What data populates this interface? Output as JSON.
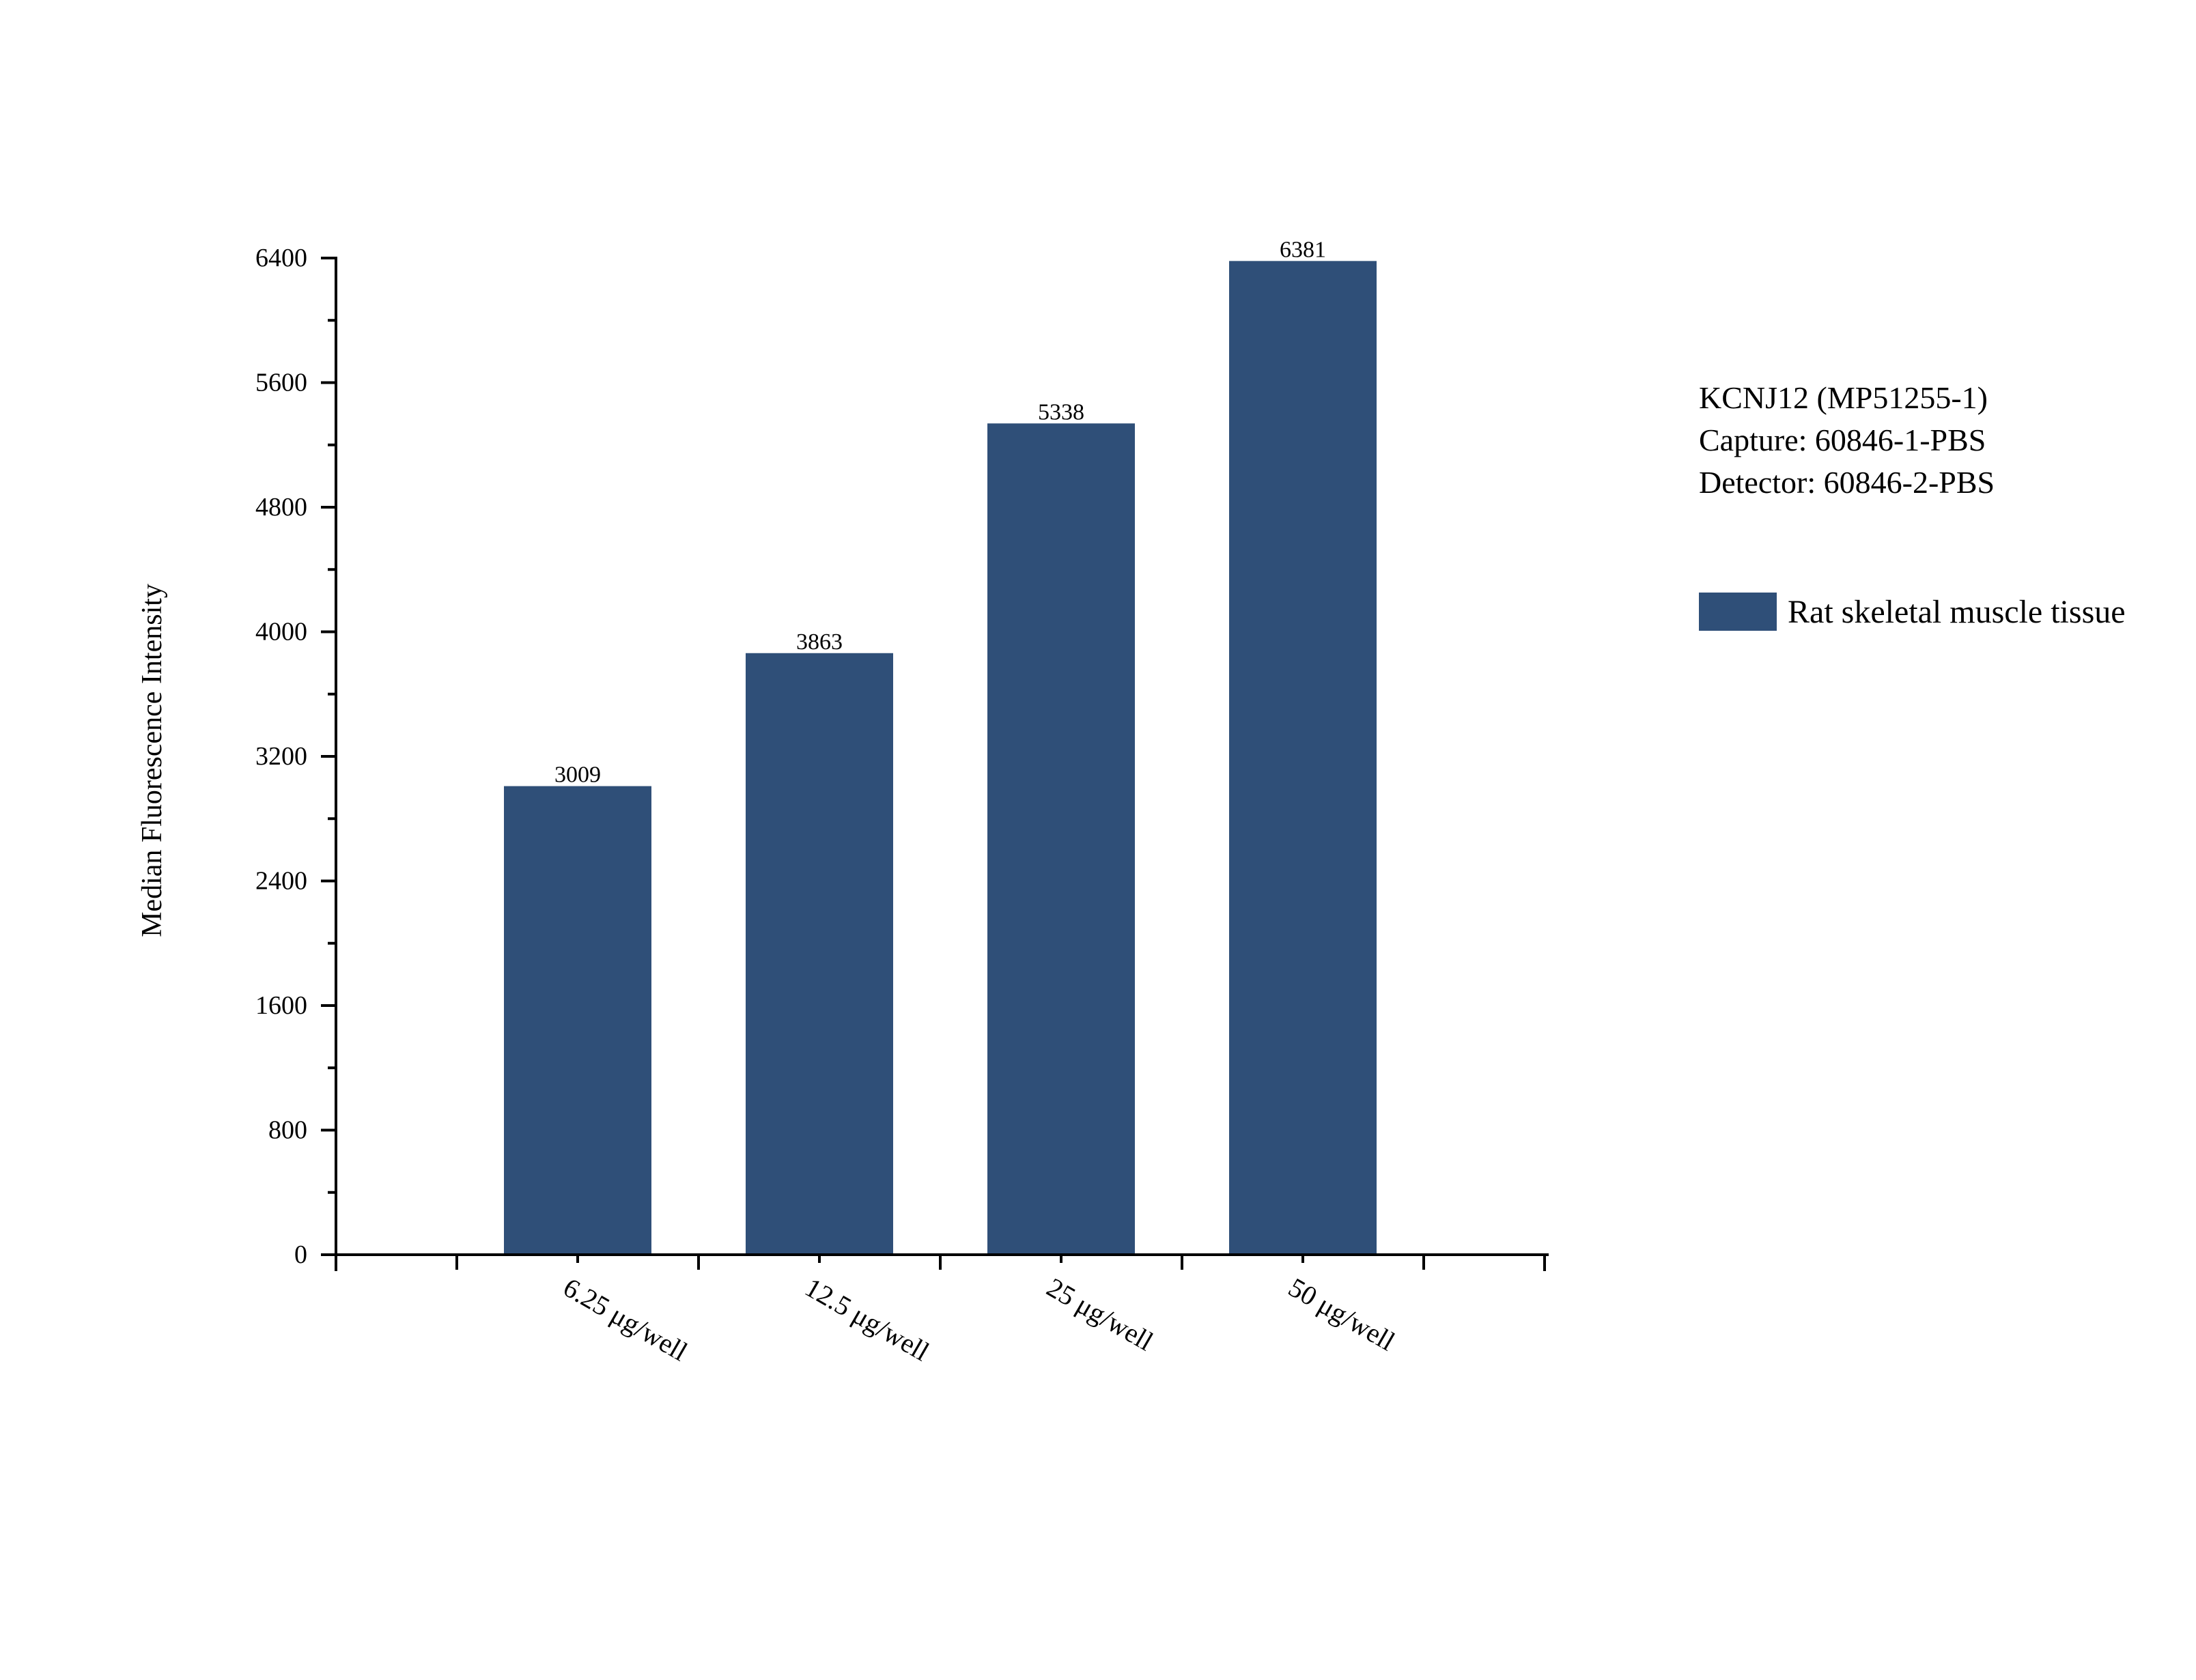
{
  "chart_data": {
    "type": "bar",
    "categories": [
      "6.25 μg/well",
      "12.5 μg/well",
      "25 μg/well",
      "50 μg/well"
    ],
    "series": [
      {
        "name": "Rat skeletal muscle tissue",
        "values": [
          3009,
          3863,
          5338,
          6381
        ]
      }
    ],
    "data_labels": [
      "3009",
      "3863",
      "5338",
      "6381"
    ],
    "ylabel": "Median Fluorescence Intensity",
    "xlabel": "",
    "ylim": [
      0,
      6400
    ],
    "yticks": [
      0,
      800,
      1600,
      2400,
      3200,
      4000,
      4800,
      5600,
      6400
    ],
    "ytick_labels": [
      "0",
      "800",
      "1600",
      "2400",
      "3200",
      "4000",
      "4800",
      "5600",
      "6400"
    ],
    "annotations": [
      "KCNJ12 (MP51255-1)",
      "Capture: 60846-1-PBS",
      "Detector: 60846-2-PBS"
    ],
    "legend": {
      "placement": "right",
      "entries": [
        "Rat skeletal muscle tissue"
      ]
    },
    "grid": false,
    "bar_color": "#2f4f78"
  }
}
